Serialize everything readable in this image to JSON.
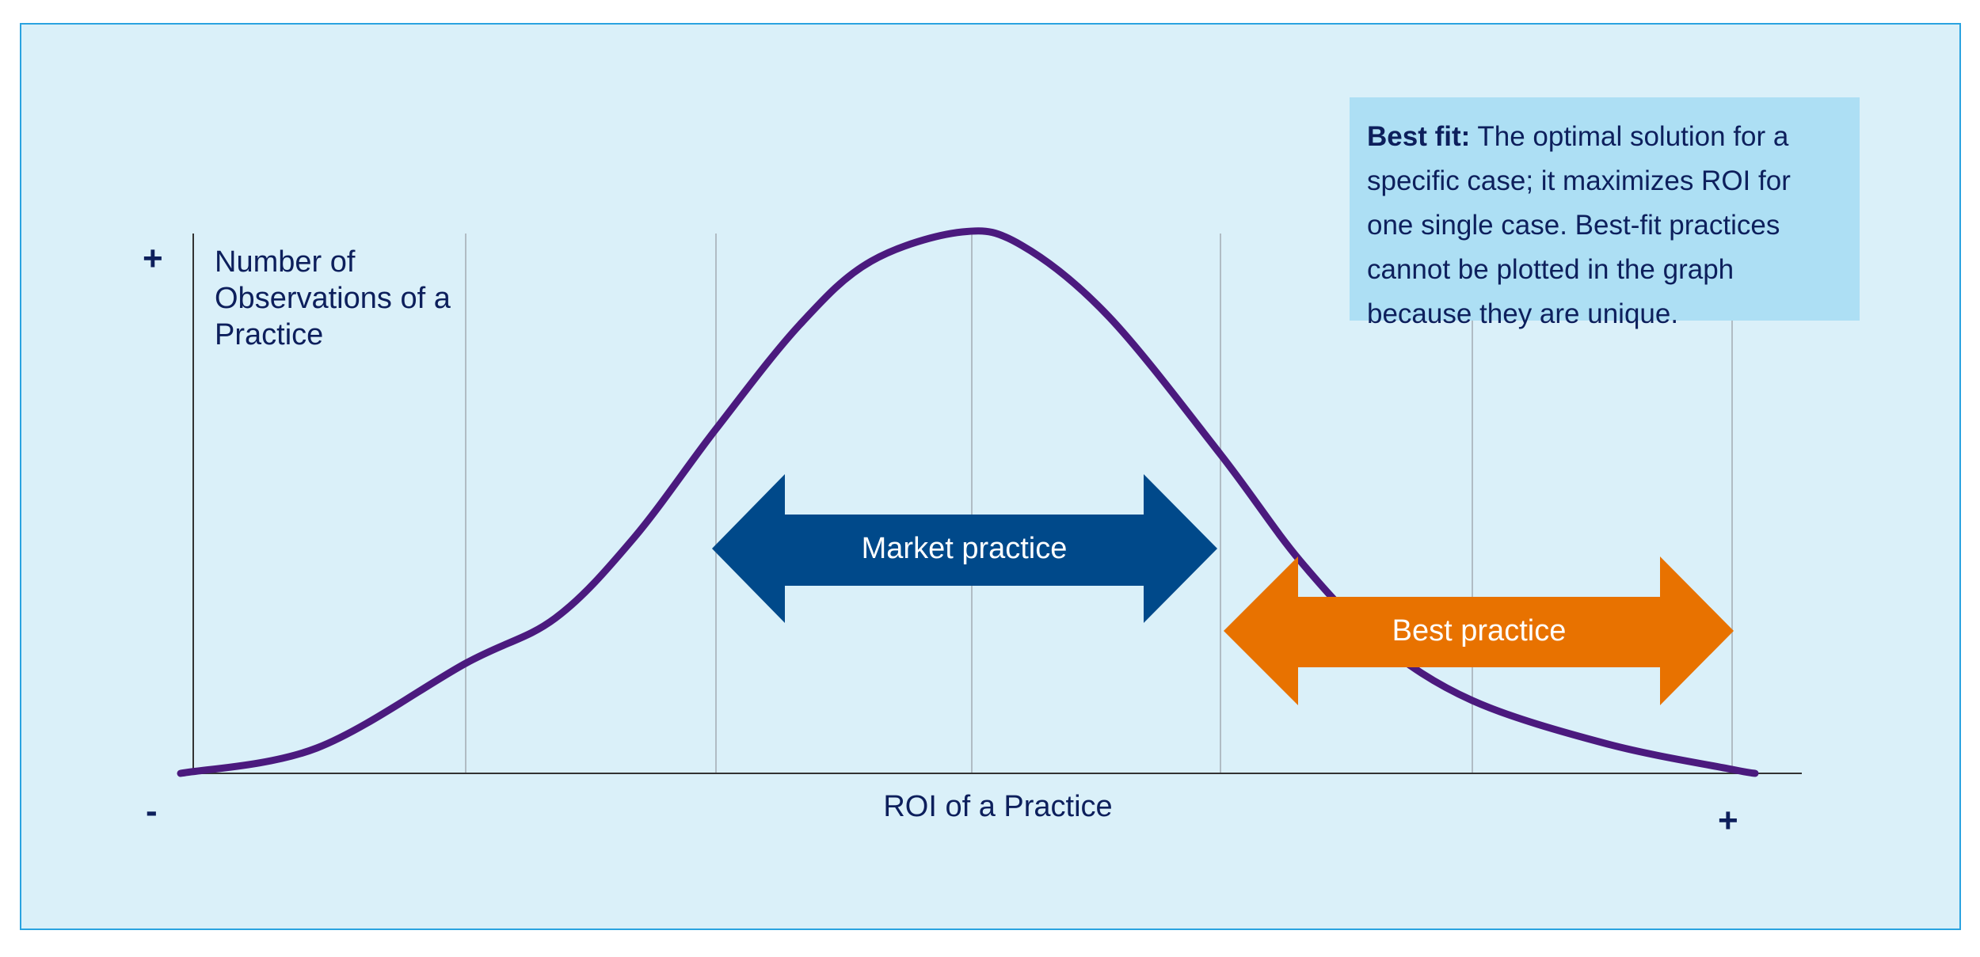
{
  "axes": {
    "y_label": "Number of Observations of a Practice",
    "y_plus": "+",
    "x_label": "ROI of a Practice",
    "x_minus": "-",
    "x_plus": "+"
  },
  "arrows": {
    "market": {
      "label": "Market practice",
      "color": "#00498a"
    },
    "best": {
      "label": "Best practice",
      "color": "#e87200"
    }
  },
  "info_box": {
    "title": "Best fit:",
    "text": " The optimal solution for a specific case; it maximizes ROI for one single case. Best-fit practices cannot be plotted in the graph because they are unique."
  },
  "colors": {
    "background": "#daf0f9",
    "border": "#2aa3e0",
    "curve": "#4b1a7e",
    "info_box": "#addff4",
    "text": "#0d1f5c"
  }
}
